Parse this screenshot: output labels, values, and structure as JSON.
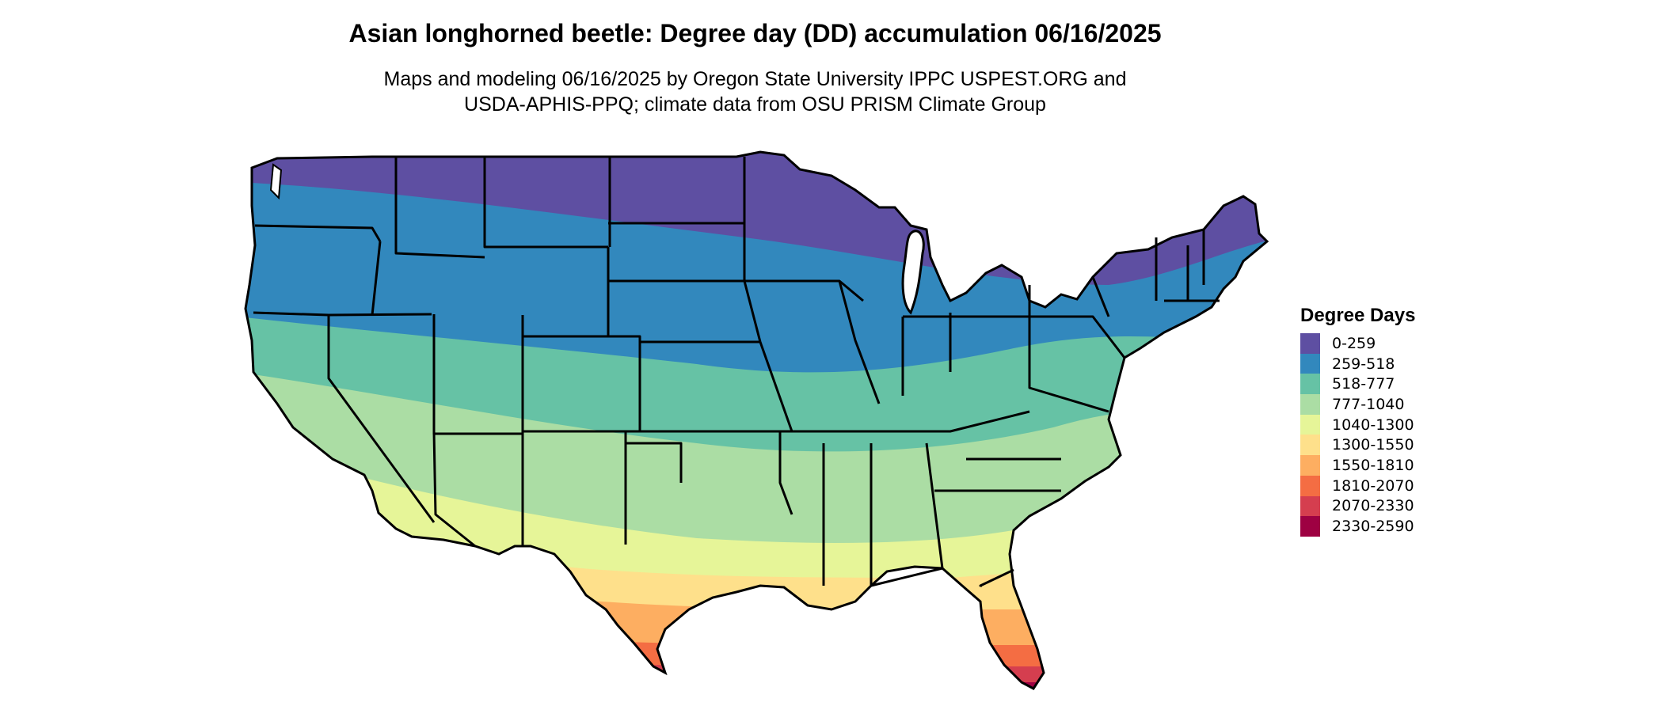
{
  "title": "Asian longhorned beetle: Degree day (DD) accumulation 06/16/2025",
  "subtitle_line1": "Maps and modeling 06/16/2025 by Oregon State University IPPC USPEST.ORG and",
  "subtitle_line2": "USDA-APHIS-PPQ; climate data from OSU PRISM Climate Group",
  "legend": {
    "title": "Degree Days",
    "items": [
      {
        "label": "0-259",
        "color": "#5E4FA2"
      },
      {
        "label": "259-518",
        "color": "#3288BD"
      },
      {
        "label": "518-777",
        "color": "#66C2A5"
      },
      {
        "label": "777-1040",
        "color": "#ABDDA4"
      },
      {
        "label": "1040-1300",
        "color": "#E6F598"
      },
      {
        "label": "1300-1550",
        "color": "#FEE08B"
      },
      {
        "label": "1550-1810",
        "color": "#FDAE61"
      },
      {
        "label": "1810-2070",
        "color": "#F46D43"
      },
      {
        "label": "2070-2330",
        "color": "#D53E4F"
      },
      {
        "label": "2330-2590",
        "color": "#9E0142"
      }
    ]
  }
}
